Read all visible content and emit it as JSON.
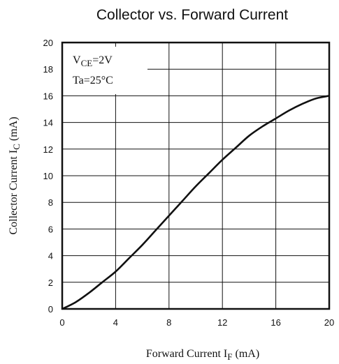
{
  "chart_data": {
    "type": "line",
    "title": "Collector vs. Forward Current",
    "xlabel": {
      "main": "Forward Current I",
      "sub": "F",
      "unit": " (mA)"
    },
    "ylabel": {
      "main": "Collector Current I",
      "sub": "C",
      "unit": " (mA)"
    },
    "xlim": [
      0,
      20
    ],
    "ylim": [
      0,
      20
    ],
    "xticks": [
      0,
      4,
      8,
      12,
      16,
      20
    ],
    "yticks": [
      0,
      2,
      4,
      6,
      8,
      10,
      12,
      14,
      16,
      18,
      20
    ],
    "grid": true,
    "annotations": {
      "vce": {
        "main": "V",
        "sub": "CE",
        "value": "=2V"
      },
      "ta": "Ta=25°C"
    },
    "series": [
      {
        "x": [
          0,
          1,
          2,
          3,
          4,
          5,
          6,
          7,
          8,
          9,
          10,
          11,
          12,
          13,
          14,
          15,
          16,
          17,
          18,
          19,
          20
        ],
        "y": [
          0,
          0.5,
          1.2,
          2.0,
          2.8,
          3.8,
          4.8,
          5.9,
          7.0,
          8.1,
          9.2,
          10.2,
          11.2,
          12.1,
          13.0,
          13.7,
          14.3,
          14.9,
          15.4,
          15.8,
          16.0
        ]
      }
    ]
  }
}
